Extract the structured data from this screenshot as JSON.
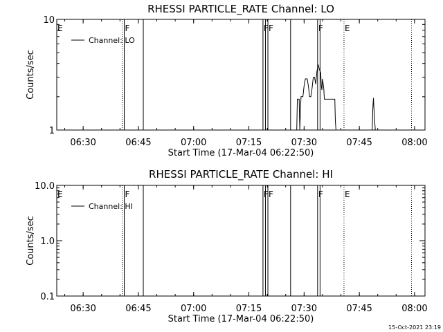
{
  "timestamp": "15-Oct-2021 23:19",
  "chart_data": [
    {
      "type": "line",
      "title": "RHESSI PARTICLE_RATE Channel: LO",
      "xlabel": "Start Time (17-Mar-04 06:22:50)",
      "ylabel": "Counts/sec",
      "yscale": "log",
      "ylim": [
        1,
        10
      ],
      "xlim": [
        "06:22:50",
        "08:02:50"
      ],
      "grid": false,
      "legend_position": "top-left",
      "legend": "Channel: LO",
      "x_ticks": [
        "06:30",
        "06:45",
        "07:00",
        "07:15",
        "07:30",
        "07:45",
        "08:00"
      ],
      "y_ticks": [
        "1",
        "10"
      ],
      "markers": [
        {
          "time": "06:22:50",
          "label": "E",
          "style": "dotted"
        },
        {
          "time": "06:40:40",
          "label": "",
          "style": "dotted"
        },
        {
          "time": "06:41:10",
          "label": "F",
          "style": "solid"
        },
        {
          "time": "06:46:20",
          "label": "",
          "style": "solid"
        },
        {
          "time": "07:18:50",
          "label": "F",
          "style": "solid"
        },
        {
          "time": "07:19:30",
          "label": "",
          "style": "solid"
        },
        {
          "time": "07:20:10",
          "label": "F",
          "style": "solid"
        },
        {
          "time": "07:26:20",
          "label": "",
          "style": "solid"
        },
        {
          "time": "07:33:40",
          "label": "F",
          "style": "solid"
        },
        {
          "time": "07:34:20",
          "label": "",
          "style": "solid"
        },
        {
          "time": "07:40:50",
          "label": "E",
          "style": "dotted"
        },
        {
          "time": "07:59:10",
          "label": "",
          "style": "dotted"
        }
      ],
      "series": [
        {
          "segments": [
            [
              [
                "07:28:00",
                1
              ],
              [
                "07:28:10",
                1.9
              ],
              [
                "07:28:40",
                1.9
              ],
              [
                "07:28:50",
                1
              ],
              [
                "07:29:00",
                1.5
              ],
              [
                "07:29:10",
                2.0
              ],
              [
                "07:29:40",
                2.0
              ],
              [
                "07:30:00",
                2.5
              ],
              [
                "07:30:20",
                2.9
              ],
              [
                "07:30:50",
                2.9
              ],
              [
                "07:31:10",
                2.5
              ],
              [
                "07:31:30",
                2.0
              ],
              [
                "07:31:50",
                2.0
              ],
              [
                "07:32:10",
                2.4
              ],
              [
                "07:32:30",
                3.0
              ],
              [
                "07:32:50",
                3.0
              ],
              [
                "07:33:10",
                2.6
              ],
              [
                "07:33:30",
                3.4
              ],
              [
                "07:33:50",
                3.9
              ],
              [
                "07:34:10",
                3.5
              ],
              [
                "07:34:30",
                3.3
              ],
              [
                "07:34:40",
                2.5
              ],
              [
                "07:34:50",
                2.3
              ],
              [
                "07:35:00",
                2.9
              ],
              [
                "07:35:20",
                2.4
              ],
              [
                "07:35:30",
                1.9
              ],
              [
                "07:38:20",
                1.9
              ],
              [
                "07:38:30",
                1.2
              ],
              [
                "07:38:40",
                1
              ]
            ],
            [
              [
                "07:48:30",
                1
              ],
              [
                "07:48:40",
                1.55
              ],
              [
                "07:48:50",
                1.95
              ],
              [
                "07:49:00",
                1.5
              ],
              [
                "07:49:10",
                1.2
              ],
              [
                "07:49:20",
                1
              ]
            ]
          ]
        }
      ]
    },
    {
      "type": "line",
      "title": "RHESSI PARTICLE_RATE Channel: HI",
      "xlabel": "Start Time (17-Mar-04 06:22:50)",
      "ylabel": "Counts/sec",
      "yscale": "log",
      "ylim": [
        0.1,
        10
      ],
      "xlim": [
        "06:22:50",
        "08:02:50"
      ],
      "grid": false,
      "legend_position": "top-left",
      "legend": "Channel: HI",
      "x_ticks": [
        "06:30",
        "06:45",
        "07:00",
        "07:15",
        "07:30",
        "07:45",
        "08:00"
      ],
      "y_ticks": [
        "0.1",
        "1.0",
        "10.0"
      ],
      "markers": [
        {
          "time": "06:22:50",
          "label": "E",
          "style": "dotted"
        },
        {
          "time": "06:40:40",
          "label": "",
          "style": "dotted"
        },
        {
          "time": "06:41:10",
          "label": "F",
          "style": "solid"
        },
        {
          "time": "06:46:20",
          "label": "",
          "style": "solid"
        },
        {
          "time": "07:18:50",
          "label": "F",
          "style": "solid"
        },
        {
          "time": "07:19:30",
          "label": "",
          "style": "solid"
        },
        {
          "time": "07:20:10",
          "label": "F",
          "style": "solid"
        },
        {
          "time": "07:26:20",
          "label": "",
          "style": "solid"
        },
        {
          "time": "07:33:40",
          "label": "F",
          "style": "solid"
        },
        {
          "time": "07:34:20",
          "label": "",
          "style": "solid"
        },
        {
          "time": "07:40:50",
          "label": "E",
          "style": "dotted"
        },
        {
          "time": "07:59:10",
          "label": "",
          "style": "dotted"
        }
      ],
      "series": [
        {
          "segments": []
        }
      ]
    }
  ]
}
